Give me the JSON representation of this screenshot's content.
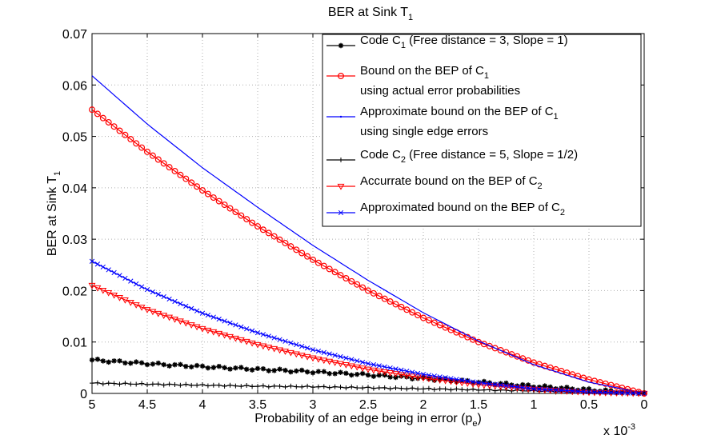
{
  "chart_data": {
    "type": "line",
    "title": {
      "main": "BER at Sink T",
      "sub": "1"
    },
    "xlabel": {
      "main": "Probability of an edge being in error (p",
      "sub": "e",
      "tail": ")"
    },
    "ylabel": {
      "main": "BER at Sink T",
      "sub": "1"
    },
    "x_multiplier": {
      "main": "x 10",
      "sup": "-3"
    },
    "xlim": [
      5,
      0
    ],
    "ylim": [
      0,
      0.07
    ],
    "x_ticks": [
      5,
      4.5,
      4,
      3.5,
      3,
      2.5,
      2,
      1.5,
      1,
      0.5,
      0
    ],
    "x_tick_labels": [
      "5",
      "4.5",
      "4",
      "3.5",
      "3",
      "2.5",
      "2",
      "1.5",
      "1",
      "0.5",
      "0"
    ],
    "y_ticks": [
      0,
      0.01,
      0.02,
      0.03,
      0.04,
      0.05,
      0.06,
      0.07
    ],
    "y_tick_labels": [
      "0",
      "0.01",
      "0.02",
      "0.03",
      "0.04",
      "0.05",
      "0.06",
      "0.07"
    ],
    "grid": true,
    "legend_position": "top-right",
    "x": [
      5,
      4.5,
      4,
      3.5,
      3,
      2.5,
      2,
      1.5,
      1,
      0.5,
      0
    ],
    "series": [
      {
        "name": "Code C1 (Free distance = 3, Slope = 1)",
        "legend": [
          {
            "t": "Code C"
          },
          {
            "t": "1",
            "sub": true
          },
          {
            "t": "  (Free distance = 3, Slope = 1)"
          }
        ],
        "color": "#000000",
        "marker": "star",
        "values": [
          0.0065,
          0.0058,
          0.0052,
          0.0047,
          0.0042,
          0.0036,
          0.0029,
          0.0022,
          0.0014,
          0.0007,
          0
        ]
      },
      {
        "name": "Bound on the BEP of C1 using actual error probabilities",
        "legend": [
          {
            "t": "Bound on the BEP of C"
          },
          {
            "t": "1",
            "sub": true
          }
        ],
        "legend2": "using actual error probabilities",
        "color": "#ff0000",
        "marker": "circle",
        "values": [
          0.0552,
          0.047,
          0.0395,
          0.0325,
          0.026,
          0.02,
          0.0147,
          0.01,
          0.006,
          0.0027,
          0
        ]
      },
      {
        "name": "Approximate bound on the BEP of C1 using single edge errors",
        "legend": [
          {
            "t": "Approximate bound on the BEP of C"
          },
          {
            "t": "1",
            "sub": true
          }
        ],
        "legend2": "using single edge errors",
        "color": "#0000ff",
        "marker": "dot",
        "values": [
          0.0618,
          0.0524,
          0.0439,
          0.0362,
          0.0288,
          0.022,
          0.0157,
          0.0102,
          0.0056,
          0.0022,
          0
        ]
      },
      {
        "name": "Code C2 (Free distance = 5, Slope = 1/2)",
        "legend": [
          {
            "t": "Code C"
          },
          {
            "t": "2",
            "sub": true
          },
          {
            "t": " (Free distance = 5, Slope = 1/2)"
          }
        ],
        "color": "#000000",
        "marker": "plus",
        "values": [
          0.002,
          0.0018,
          0.0016,
          0.0014,
          0.0013,
          0.0011,
          0.0009,
          0.0007,
          0.0005,
          0.0002,
          0
        ]
      },
      {
        "name": "Accurrate bound on the BEP of C2",
        "legend": [
          {
            "t": "Accurrate bound on the BEP of C"
          },
          {
            "t": "2",
            "sub": true
          }
        ],
        "color": "#ff0000",
        "marker": "triangle",
        "values": [
          0.021,
          0.0163,
          0.0126,
          0.0095,
          0.0069,
          0.0047,
          0.003,
          0.0017,
          0.0008,
          0.0002,
          0
        ]
      },
      {
        "name": "Approximated bound on the BEP of C2",
        "legend": [
          {
            "t": "Approximated bound on the BEP of C"
          },
          {
            "t": "2",
            "sub": true
          }
        ],
        "color": "#0000ff",
        "marker": "x",
        "values": [
          0.0257,
          0.0202,
          0.0156,
          0.0118,
          0.0085,
          0.0058,
          0.0037,
          0.0021,
          0.0009,
          0.0003,
          0
        ]
      }
    ]
  }
}
